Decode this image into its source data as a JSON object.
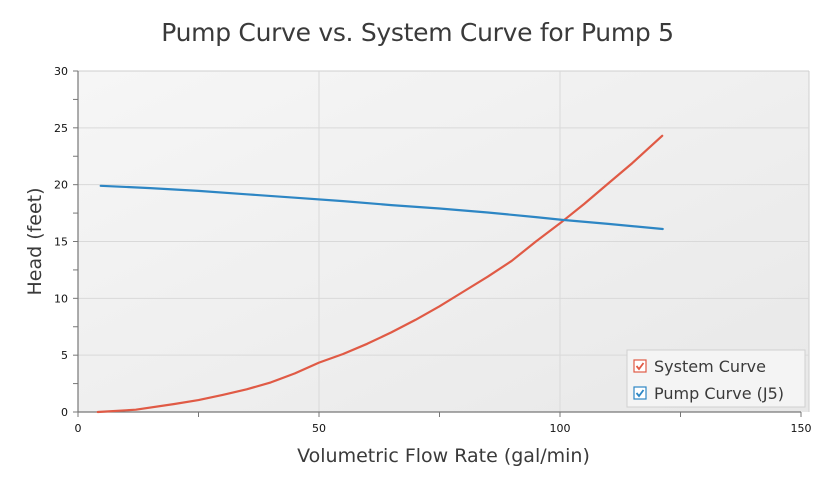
{
  "chart_data": {
    "type": "line",
    "title": "Pump Curve vs. System Curve for Pump 5",
    "xlabel": "Volumetric Flow Rate (gal/min)",
    "ylabel": "Head (feet)",
    "xlim": [
      0,
      150
    ],
    "ylim": [
      0,
      30
    ],
    "xticks": [
      0,
      50,
      100,
      150
    ],
    "xminor": [
      25,
      75,
      125
    ],
    "yticks": [
      0,
      5,
      10,
      15,
      20,
      25,
      30
    ],
    "yminor": [
      2.5,
      7.5,
      12.5,
      17.5,
      22.5,
      27.5
    ],
    "grid": true,
    "legend_position": "bottom-right",
    "series": [
      {
        "name": "System Curve",
        "color": "#e05a45",
        "checked": true,
        "x": [
          4.1,
          12,
          20,
          25,
          30,
          35,
          40,
          45,
          50,
          55,
          60,
          65,
          70,
          75,
          80,
          85,
          90,
          95,
          100,
          105,
          110,
          115,
          121.2
        ],
        "y": [
          0.0,
          0.2,
          0.7,
          1.05,
          1.5,
          2.0,
          2.6,
          3.4,
          4.35,
          5.1,
          6.0,
          7.0,
          8.1,
          9.3,
          10.6,
          11.9,
          13.3,
          15.0,
          16.6,
          18.3,
          20.1,
          21.9,
          24.3
        ]
      },
      {
        "name": "Pump Curve (J5)",
        "color": "#2d86c4",
        "checked": true,
        "x": [
          4.7,
          15,
          25,
          35,
          45,
          55,
          65,
          75,
          85,
          95,
          100.5,
          110,
          121.3
        ],
        "y": [
          19.9,
          19.7,
          19.45,
          19.15,
          18.85,
          18.55,
          18.2,
          17.9,
          17.55,
          17.15,
          16.9,
          16.55,
          16.1
        ]
      }
    ]
  }
}
